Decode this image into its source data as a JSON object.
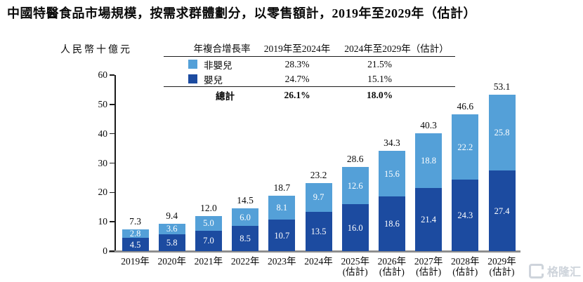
{
  "title": "中國特醫食品市場規模，按需求群體劃分，以零售額計，2019年至2029年（估計）",
  "y_axis_unit": "人民幣十億元",
  "legend_table": {
    "header": [
      "年複合增長率",
      "2019年至2024年",
      "2024年至2029年（估計）"
    ],
    "rows": [
      {
        "label": "非嬰兒",
        "cagr_2019_2024": "28.3%",
        "cagr_2024_2029": "21.5%"
      },
      {
        "label": "嬰兒",
        "cagr_2019_2024": "24.7%",
        "cagr_2024_2029": "15.1%"
      }
    ],
    "total": {
      "label": "總計",
      "cagr_2019_2024": "26.1%",
      "cagr_2024_2029": "18.0%"
    }
  },
  "chart_data": {
    "type": "bar",
    "stacked": true,
    "title": "中國特醫食品市場規模，按需求群體劃分，以零售額計，2019年至2029年（估計）",
    "ylabel": "人民幣十億元",
    "ylim": [
      0,
      60
    ],
    "ytick_step": 10,
    "grid": false,
    "categories": [
      "2019年",
      "2020年",
      "2021年",
      "2022年",
      "2023年",
      "2024年",
      "2025年",
      "2026年",
      "2027年",
      "2028年",
      "2029年"
    ],
    "sub_labels": [
      "",
      "",
      "",
      "",
      "",
      "",
      "(估計)",
      "(估計)",
      "(估計)",
      "(估計)",
      "(估計)"
    ],
    "series": [
      {
        "name": "非嬰兒",
        "color": "#54A0D8",
        "values": [
          2.8,
          3.6,
          5.0,
          6.0,
          8.1,
          9.7,
          12.6,
          15.6,
          18.8,
          22.2,
          25.8
        ]
      },
      {
        "name": "嬰兒",
        "color": "#1C4BA0",
        "values": [
          4.5,
          5.8,
          7.0,
          8.5,
          10.7,
          13.5,
          16.0,
          18.6,
          21.4,
          24.3,
          27.4
        ]
      }
    ],
    "totals": [
      7.3,
      9.4,
      12.0,
      14.5,
      18.7,
      23.2,
      28.6,
      34.3,
      40.3,
      46.6,
      53.1
    ],
    "legend_position": "top"
  },
  "watermark": {
    "text": "格隆汇"
  }
}
